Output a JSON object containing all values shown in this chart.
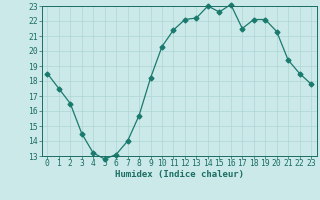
{
  "x": [
    0,
    1,
    2,
    3,
    4,
    5,
    6,
    7,
    8,
    9,
    10,
    11,
    12,
    13,
    14,
    15,
    16,
    17,
    18,
    19,
    20,
    21,
    22,
    23
  ],
  "y": [
    18.5,
    17.5,
    16.5,
    14.5,
    13.2,
    12.8,
    13.1,
    14.0,
    15.7,
    18.2,
    20.3,
    21.4,
    22.1,
    22.2,
    23.0,
    22.6,
    23.1,
    21.5,
    22.1,
    22.1,
    21.3,
    19.4,
    18.5,
    17.8
  ],
  "line_color": "#1a7a6e",
  "marker": "D",
  "marker_size": 2.5,
  "bg_color": "#cce9e9",
  "grid_color": "#aed4d4",
  "xlabel": "Humidex (Indice chaleur)",
  "ylim": [
    13,
    23
  ],
  "xlim": [
    -0.5,
    23.5
  ],
  "yticks": [
    13,
    14,
    15,
    16,
    17,
    18,
    19,
    20,
    21,
    22,
    23
  ],
  "xticks": [
    0,
    1,
    2,
    3,
    4,
    5,
    6,
    7,
    8,
    9,
    10,
    11,
    12,
    13,
    14,
    15,
    16,
    17,
    18,
    19,
    20,
    21,
    22,
    23
  ],
  "tick_color": "#1a6e64",
  "label_fontsize": 6.5,
  "tick_fontsize": 5.8
}
